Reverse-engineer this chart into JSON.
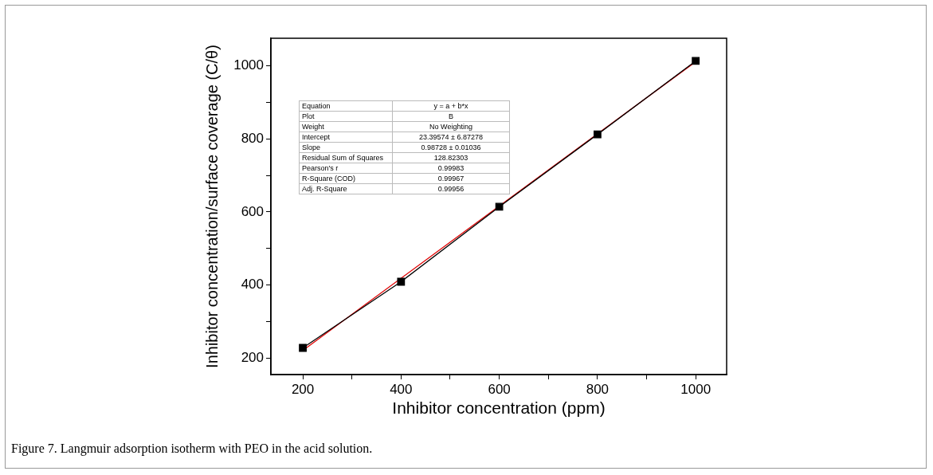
{
  "chart_data": {
    "type": "line",
    "xlabel": "Inhibitor concentration (ppm)",
    "ylabel": "Inhibitor concentration/surface coverage (C/θ)",
    "x": [
      200,
      400,
      600,
      800,
      1000
    ],
    "series": [
      {
        "type": "line",
        "color": "#000000",
        "values": [
          228,
          409,
          614,
          812,
          1013
        ],
        "marker": "square"
      },
      {
        "type": "line",
        "color": "#e00000",
        "x": [
          200,
          1000
        ],
        "values": [
          221,
          1011
        ],
        "marker": "none"
      }
    ],
    "xlim": [
      135,
      1063
    ],
    "xticks": [
      200,
      {
        "value": 300,
        "label": null
      },
      400,
      {
        "value": 500,
        "label": null
      },
      600,
      {
        "value": 700,
        "label": null
      },
      800,
      {
        "value": 900,
        "label": null
      },
      1000
    ],
    "ylim": [
      155,
      1075
    ],
    "yticks": [
      200,
      {
        "value": 300,
        "label": null
      },
      400,
      {
        "value": 500,
        "label": null
      },
      600,
      {
        "value": 700,
        "label": null
      },
      800,
      {
        "value": 900,
        "label": null
      },
      1000
    ],
    "grid": false,
    "legend": false,
    "annotations": [
      "Equation",
      "y = a + b*x",
      "Plot",
      "B",
      "Weight",
      "No Weighting",
      "Intercept",
      "23.39574 ± 6.87278",
      "Slope",
      "0.98728 ± 0.01036",
      "Residual Sum of Squares",
      "128.82303",
      "Pearson's r",
      "0.99983",
      "R-Square (COD)",
      "0.99967",
      "Adj. R-Square",
      "0.99956",
      "Figure 7. Langmuir adsorption isotherm with PEO in the acid solution."
    ]
  }
}
